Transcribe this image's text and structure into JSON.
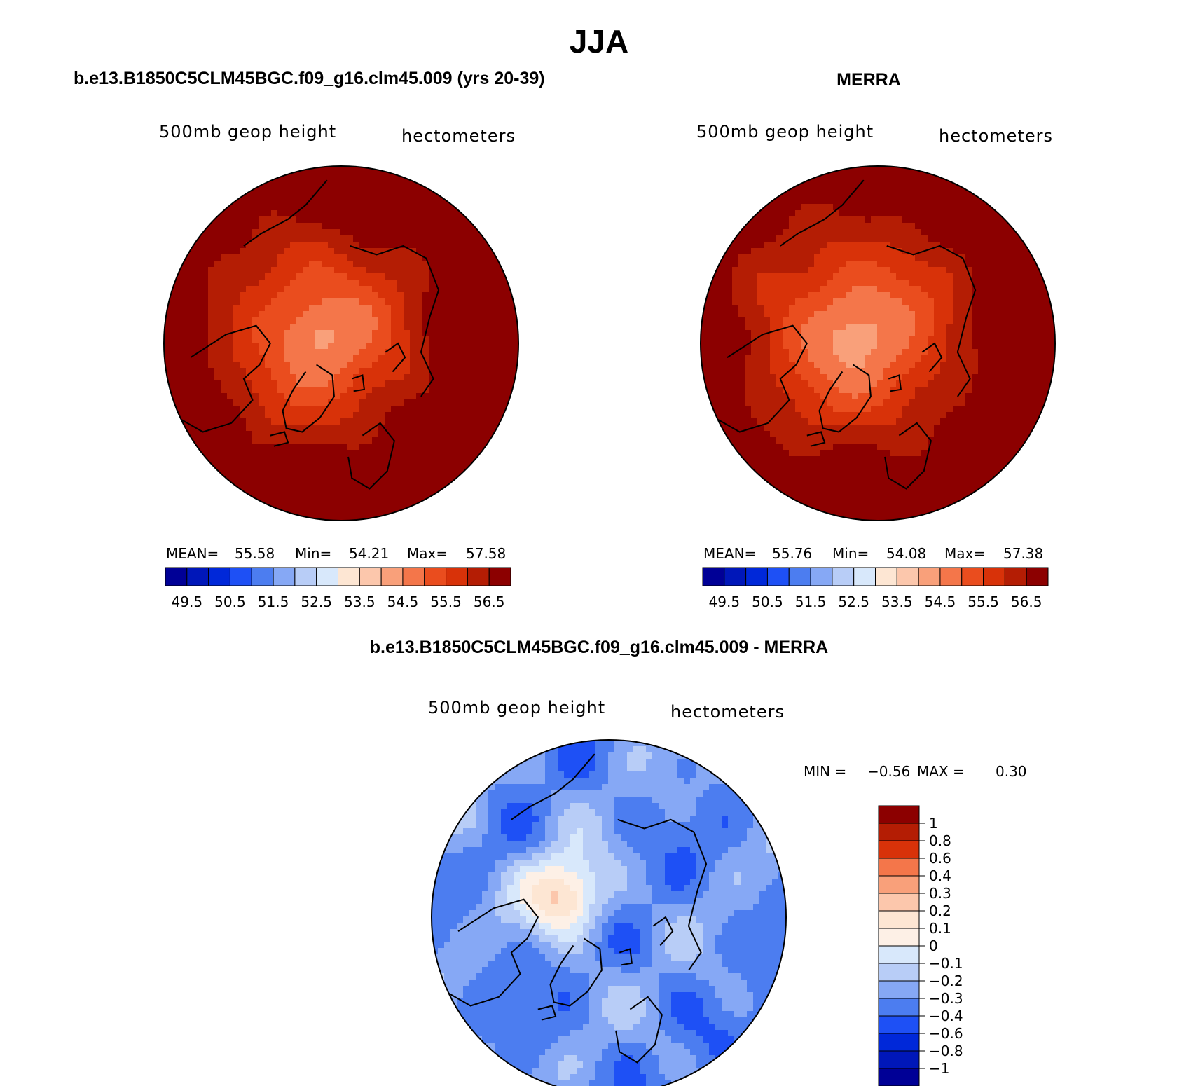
{
  "page": {
    "main_title": "JJA",
    "left_title": "b.e13.B1850C5CLM45BGC.f09_g16.clm45.009 (yrs 20-39)",
    "right_title": "MERRA",
    "diff_title": "b.e13.B1850C5CLM45BGC.f09_g16.clm45.009 - MERRA"
  },
  "panels": {
    "left": {
      "variable": "500mb geop height",
      "units": "hectometers",
      "mean_label": "MEAN=",
      "mean_value": "55.58",
      "min_label": "Min=",
      "min_value": "54.21",
      "max_label": "Max=",
      "max_value": "57.58"
    },
    "right": {
      "variable": "500mb geop height",
      "units": "hectometers",
      "mean_label": "MEAN=",
      "mean_value": "55.76",
      "min_label": "Min=",
      "min_value": "54.08",
      "max_label": "Max=",
      "max_value": "57.38"
    },
    "diff": {
      "variable": "500mb geop height",
      "units": "hectometers",
      "min_label": "MIN =",
      "min_value": "−0.56",
      "max_label": "MAX =",
      "max_value": "0.30"
    }
  },
  "chart_data": [
    {
      "type": "heatmap",
      "id": "model",
      "title": "b.e13.B1850C5CLM45BGC.f09_g16.clm45.009 (yrs 20-39)",
      "variable": "500mb geop height",
      "units": "hectometers",
      "projection": "north-polar-stereographic",
      "mean": 55.58,
      "min": 54.21,
      "max": 57.58,
      "contour_levels": [
        49.5,
        50,
        50.5,
        51,
        51.5,
        52,
        52.5,
        53,
        53.5,
        54,
        54.5,
        55,
        55.5,
        56,
        56.5
      ],
      "colorbar_labels": [
        "49.5",
        "50.5",
        "51.5",
        "52.5",
        "53.5",
        "54.5",
        "55.5",
        "56.5"
      ],
      "colors": [
        "#000096",
        "#0017b9",
        "#0028d9",
        "#1e50f5",
        "#4c7df0",
        "#86a8f5",
        "#b8cdf7",
        "#d8e8fb",
        "#fde6d3",
        "#fcc7ac",
        "#f9a07a",
        "#f4764a",
        "#ea4d1e",
        "#d83209",
        "#b41d04",
        "#8c0000"
      ]
    },
    {
      "type": "heatmap",
      "id": "obs",
      "title": "MERRA",
      "variable": "500mb geop height",
      "units": "hectometers",
      "projection": "north-polar-stereographic",
      "mean": 55.76,
      "min": 54.08,
      "max": 57.38,
      "contour_levels": [
        49.5,
        50,
        50.5,
        51,
        51.5,
        52,
        52.5,
        53,
        53.5,
        54,
        54.5,
        55,
        55.5,
        56,
        56.5
      ],
      "colorbar_labels": [
        "49.5",
        "50.5",
        "51.5",
        "52.5",
        "53.5",
        "54.5",
        "55.5",
        "56.5"
      ],
      "colors": [
        "#000096",
        "#0017b9",
        "#0028d9",
        "#1e50f5",
        "#4c7df0",
        "#86a8f5",
        "#b8cdf7",
        "#d8e8fb",
        "#fde6d3",
        "#fcc7ac",
        "#f9a07a",
        "#f4764a",
        "#ea4d1e",
        "#d83209",
        "#b41d04",
        "#8c0000"
      ]
    },
    {
      "type": "heatmap",
      "id": "difference",
      "title": "b.e13.B1850C5CLM45BGC.f09_g16.clm45.009 - MERRA",
      "variable": "500mb geop height",
      "units": "hectometers",
      "projection": "north-polar-stereographic",
      "min": -0.56,
      "max": 0.3,
      "contour_levels": [
        1,
        0.8,
        0.6,
        0.4,
        0.3,
        0.2,
        0.1,
        0,
        -0.1,
        -0.2,
        -0.3,
        -0.4,
        -0.6,
        -0.8,
        -1
      ],
      "colorbar_labels": [
        "1",
        "0.8",
        "0.6",
        "0.4",
        "0.3",
        "0.2",
        "0.1",
        "0",
        "−0.1",
        "−0.2",
        "−0.3",
        "−0.4",
        "−0.6",
        "−0.8",
        "−1"
      ],
      "colors": [
        "#8c0000",
        "#b41d04",
        "#d83209",
        "#f4764a",
        "#f9a07a",
        "#fcc7ac",
        "#fde6d3",
        "#fdf0e6",
        "#d8e8fb",
        "#b8cdf7",
        "#86a8f5",
        "#4c7df0",
        "#1e50f5",
        "#0028d9",
        "#0017b9",
        "#000096"
      ]
    }
  ]
}
